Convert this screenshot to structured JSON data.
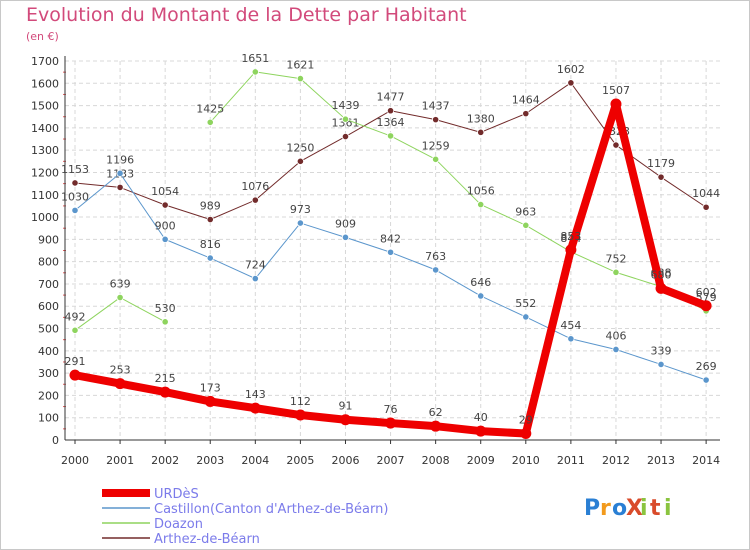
{
  "chart_data": {
    "type": "line",
    "title": "Evolution du Montant de la Dette par Habitant",
    "unit_label": "(en €)",
    "x": [
      "2000",
      "2001",
      "2002",
      "2003",
      "2004",
      "2005",
      "2006",
      "2007",
      "2008",
      "2009",
      "2010",
      "2011",
      "2012",
      "2013",
      "2014"
    ],
    "ylim": [
      0,
      1700
    ],
    "yticks": [
      0,
      100,
      200,
      300,
      400,
      500,
      600,
      700,
      800,
      900,
      1000,
      1100,
      1200,
      1300,
      1400,
      1500,
      1600,
      1700
    ],
    "grid": true,
    "legend_position": "bottom-left",
    "series": [
      {
        "name": "Arthez-de-Béarn",
        "color": "#722b2b",
        "width": 1,
        "values": [
          1153,
          1133,
          1054,
          989,
          1076,
          1250,
          1361,
          1477,
          1437,
          1380,
          1464,
          1602,
          1323,
          1179,
          1044
        ]
      },
      {
        "name": "Doazon",
        "color": "#8ed45e",
        "width": 1,
        "break_after": 2,
        "values": [
          492,
          639,
          530,
          1425,
          1651,
          1621,
          1439,
          1364,
          1259,
          1056,
          963,
          844,
          752,
          688,
          579
        ]
      },
      {
        "name": "Castillon(Canton d'Arthez-de-Béarn)",
        "color": "#5b96cc",
        "width": 1,
        "values": [
          1030,
          1196,
          900,
          816,
          724,
          973,
          909,
          842,
          763,
          646,
          552,
          454,
          406,
          339,
          269
        ]
      },
      {
        "name": "URDèS",
        "color": "#ee0000",
        "width": 8,
        "values": [
          291,
          253,
          215,
          173,
          143,
          112,
          91,
          76,
          62,
          40,
          29,
          853,
          1507,
          680,
          602
        ]
      }
    ]
  },
  "legend": {
    "items": [
      {
        "label": "URDèS",
        "color": "#ee0000"
      },
      {
        "label": "Castillon(Canton d'Arthez-de-Béarn)",
        "color": "#5b96cc"
      },
      {
        "label": "Doazon",
        "color": "#8ed45e"
      },
      {
        "label": "Arthez-de-Béarn",
        "color": "#722b2b"
      }
    ]
  },
  "logo": {
    "text": "ProXiti"
  }
}
